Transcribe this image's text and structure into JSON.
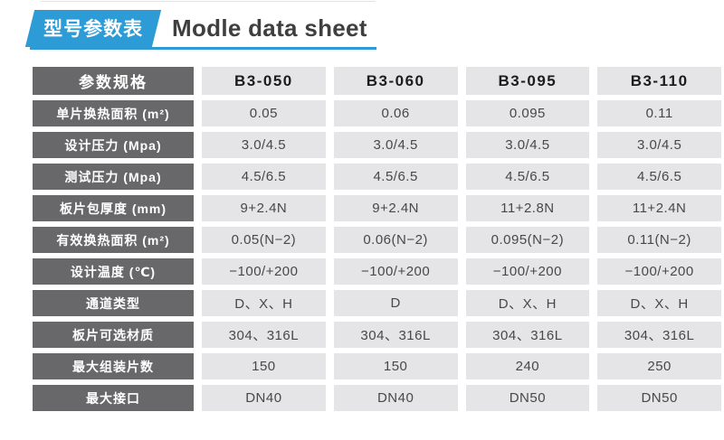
{
  "header": {
    "badge": "型号参数表",
    "title": "Modle data sheet"
  },
  "colors": {
    "accent_blue": "#2d9bd5",
    "label_cell_bg": "#68686a",
    "value_cell_bg": "#e5e5e7"
  },
  "table": {
    "corner_label": "参数规格",
    "columns": [
      "B3-050",
      "B3-060",
      "B3-095",
      "B3-110"
    ],
    "rows": [
      {
        "label": "单片换热面积 (m²)",
        "values": [
          "0.05",
          "0.06",
          "0.095",
          "0.11"
        ]
      },
      {
        "label": "设计压力 (Mpa)",
        "values": [
          "3.0/4.5",
          "3.0/4.5",
          "3.0/4.5",
          "3.0/4.5"
        ]
      },
      {
        "label": "测试压力 (Mpa)",
        "values": [
          "4.5/6.5",
          "4.5/6.5",
          "4.5/6.5",
          "4.5/6.5"
        ]
      },
      {
        "label": "板片包厚度 (mm)",
        "values": [
          "9+2.4N",
          "9+2.4N",
          "11+2.8N",
          "11+2.4N"
        ]
      },
      {
        "label": "有效换热面积 (m²)",
        "values": [
          "0.05(N−2)",
          "0.06(N−2)",
          "0.095(N−2)",
          "0.11(N−2)"
        ]
      },
      {
        "label": "设计温度 (℃)",
        "values": [
          "−100/+200",
          "−100/+200",
          "−100/+200",
          "−100/+200"
        ]
      },
      {
        "label": "通道类型",
        "values": [
          "D、X、H",
          "D",
          "D、X、H",
          "D、X、H"
        ]
      },
      {
        "label": "板片可选材质",
        "values": [
          "304、316L",
          "304、316L",
          "304、316L",
          "304、316L"
        ]
      },
      {
        "label": "最大组装片数",
        "values": [
          "150",
          "150",
          "240",
          "250"
        ]
      },
      {
        "label": "最大接口",
        "values": [
          "DN40",
          "DN40",
          "DN50",
          "DN50"
        ]
      }
    ]
  }
}
